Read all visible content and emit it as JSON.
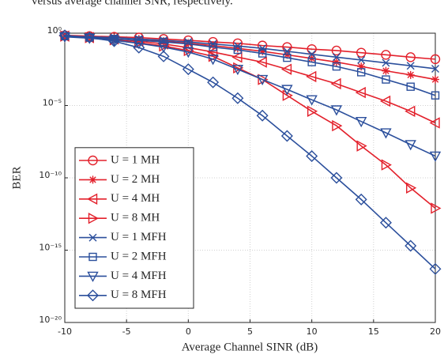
{
  "caption": "versus average channel SNR, respectively.",
  "chart_data": {
    "type": "line",
    "xlabel": "Average Channel SINR (dB)",
    "ylabel": "BER",
    "x": [
      -10,
      -8,
      -6,
      -4,
      -2,
      0,
      2,
      4,
      6,
      8,
      10,
      12,
      14,
      16,
      18,
      20
    ],
    "xlim": [
      -10,
      20
    ],
    "xticks": [
      -10,
      -5,
      0,
      5,
      10,
      15,
      20
    ],
    "ylim": [
      1e-20,
      1
    ],
    "log_y": true,
    "yticks": [
      {
        "value": 1e-20,
        "label": "10⁻²⁰"
      },
      {
        "value": 1e-15,
        "label": "10⁻¹⁵"
      },
      {
        "value": 1e-10,
        "label": "10⁻¹⁰"
      },
      {
        "value": 1e-05,
        "label": "10⁻⁵"
      },
      {
        "value": 1,
        "label": "10⁰"
      }
    ],
    "grid": true,
    "legend": "lower left",
    "series": [
      {
        "name": "U = 1 MH",
        "color": "#e3202b",
        "marker": "circle",
        "values": [
          0.71,
          0.63,
          0.56,
          0.5,
          0.4,
          0.32,
          0.25,
          0.2,
          0.14,
          0.11,
          0.079,
          0.063,
          0.045,
          0.032,
          0.022,
          0.016
        ]
      },
      {
        "name": "U = 2 MH",
        "color": "#e3202b",
        "marker": "star",
        "values": [
          0.63,
          0.56,
          0.5,
          0.4,
          0.28,
          0.2,
          0.14,
          0.089,
          0.056,
          0.032,
          0.018,
          0.01,
          0.005,
          0.0025,
          0.0013,
          0.00063
        ]
      },
      {
        "name": "U = 4 MH",
        "color": "#e3202b",
        "marker": "tri-left",
        "values": [
          0.63,
          0.5,
          0.4,
          0.28,
          0.18,
          0.1,
          0.05,
          0.022,
          0.01,
          0.0032,
          0.001,
          0.00032,
          7.9e-05,
          2e-05,
          4e-06,
          6.3e-07
        ]
      },
      {
        "name": "U = 8 MH",
        "color": "#e3202b",
        "marker": "tri-right",
        "values": [
          0.63,
          0.5,
          0.35,
          0.22,
          0.13,
          0.063,
          0.025,
          0.004,
          0.00063,
          5e-05,
          4e-06,
          4e-07,
          1.6e-08,
          7.9e-10,
          2e-11,
          7.9e-13
        ]
      },
      {
        "name": "U = 1 MFH",
        "color": "#2b4f9c",
        "marker": "x",
        "values": [
          0.63,
          0.56,
          0.5,
          0.4,
          0.32,
          0.25,
          0.18,
          0.13,
          0.089,
          0.056,
          0.035,
          0.022,
          0.014,
          0.0089,
          0.0056,
          0.0035
        ]
      },
      {
        "name": "U = 2 MFH",
        "color": "#2b4f9c",
        "marker": "square",
        "values": [
          0.63,
          0.5,
          0.4,
          0.32,
          0.25,
          0.18,
          0.11,
          0.071,
          0.04,
          0.02,
          0.01,
          0.005,
          0.002,
          0.00063,
          0.0002,
          5e-05
        ]
      },
      {
        "name": "U = 4 MFH",
        "color": "#2b4f9c",
        "marker": "tri-down",
        "values": [
          0.56,
          0.45,
          0.32,
          0.2,
          0.11,
          0.05,
          0.016,
          0.0032,
          0.00063,
          0.00013,
          2.5e-05,
          5e-06,
          7.9e-07,
          1.3e-07,
          2e-08,
          3.2e-09
        ]
      },
      {
        "name": "U = 8 MFH",
        "color": "#2b4f9c",
        "marker": "diamond",
        "values": [
          0.71,
          0.5,
          0.28,
          0.1,
          0.025,
          0.0032,
          0.0004,
          3.2e-05,
          2e-06,
          7.9e-08,
          3.2e-09,
          1e-10,
          3.2e-12,
          7.9e-14,
          2e-15,
          5e-17
        ]
      }
    ]
  }
}
